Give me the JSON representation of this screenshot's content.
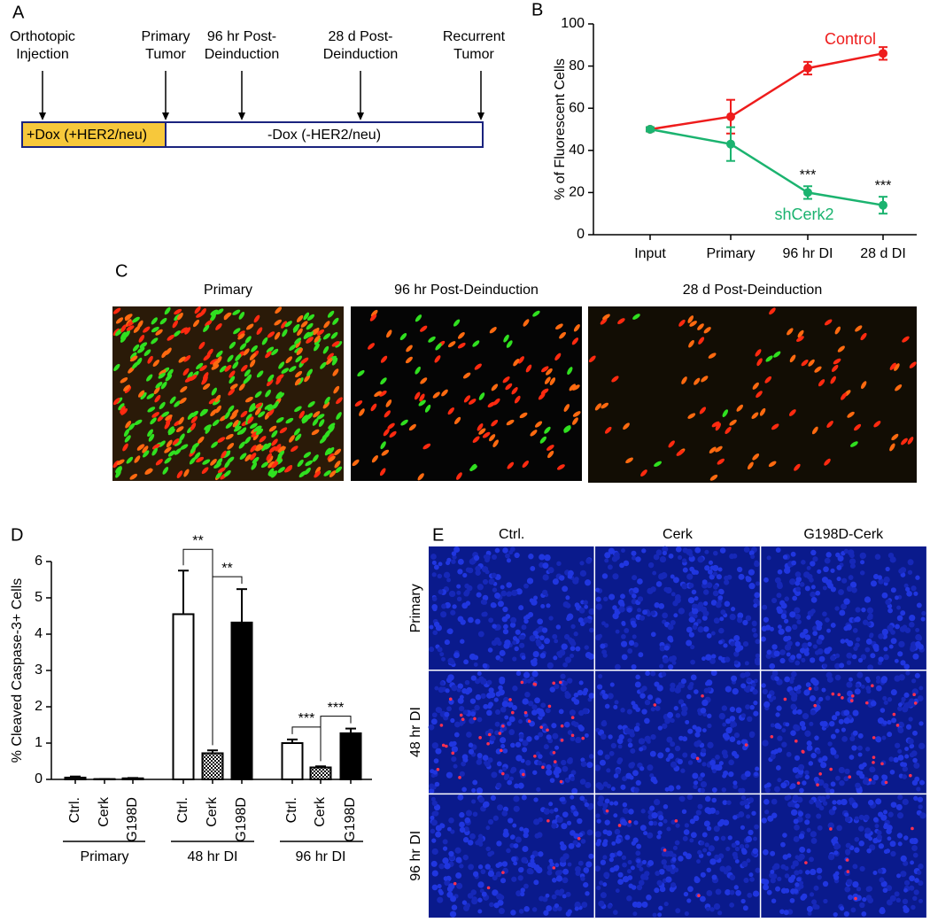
{
  "panel_labels": [
    "A",
    "B",
    "C",
    "D",
    "E"
  ],
  "timeline": {
    "events": [
      [
        "Orthotopic",
        "Injection"
      ],
      [
        "Primary",
        "Tumor"
      ],
      [
        "96 hr Post-",
        "Deinduction"
      ],
      [
        "28 d Post-",
        "Deinduction"
      ],
      [
        "Recurrent",
        "Tumor"
      ]
    ],
    "phases": [
      "+Dox (+HER2/neu)",
      "-Dox (-HER2/neu)"
    ]
  },
  "images_c": {
    "titles": [
      "Primary",
      "96 hr Post-Deinduction",
      "28 d Post-Deinduction"
    ]
  },
  "images_e": {
    "columns": [
      "Ctrl.",
      "Cerk",
      "G198D-Cerk"
    ],
    "rows": [
      "Primary",
      "48 hr DI",
      "96 hr DI"
    ]
  },
  "chart_data": [
    {
      "type": "line",
      "y_label": "% of Fluorescent Cells",
      "categories": [
        "Input",
        "Primary",
        "96 hr DI",
        "28 d DI"
      ],
      "series": [
        {
          "name": "Control",
          "color": "#ee1c1c",
          "values": [
            50,
            56,
            79,
            86
          ],
          "errors": [
            1,
            8,
            3,
            3
          ]
        },
        {
          "name": "shCerk2",
          "color": "#1bb36f",
          "values": [
            50,
            43,
            20,
            14
          ],
          "errors": [
            1,
            8,
            3,
            4
          ],
          "significance": [
            null,
            null,
            "***",
            "***"
          ]
        }
      ],
      "ylim": [
        0,
        100
      ],
      "yticks": [
        0,
        20,
        40,
        60,
        80,
        100
      ]
    },
    {
      "type": "grouped_bar",
      "y_label": "% Cleaved Caspase-3+ Cells",
      "categories": [
        "Primary",
        "48 hr DI",
        "96 hr DI"
      ],
      "series": [
        {
          "name": "Ctrl.",
          "color": "#ffffff",
          "values": [
            0.05,
            4.55,
            1.0
          ],
          "errors": [
            0.03,
            1.2,
            0.1
          ]
        },
        {
          "name": "Cerk",
          "color": "#808080",
          "pattern": "checkered",
          "values": [
            0.01,
            0.72,
            0.33
          ],
          "errors": [
            0,
            0.08,
            0.03
          ]
        },
        {
          "name": "G198D",
          "color": "#000000",
          "values": [
            0.03,
            4.32,
            1.27
          ],
          "errors": [
            0.01,
            0.92,
            0.13
          ]
        }
      ],
      "brackets": [
        [
          null,
          null
        ],
        [
          "**",
          "**"
        ],
        [
          "***",
          "***"
        ]
      ],
      "ylim": [
        0,
        6
      ],
      "yticks": [
        0,
        1,
        2,
        3,
        4,
        5,
        6
      ]
    }
  ]
}
